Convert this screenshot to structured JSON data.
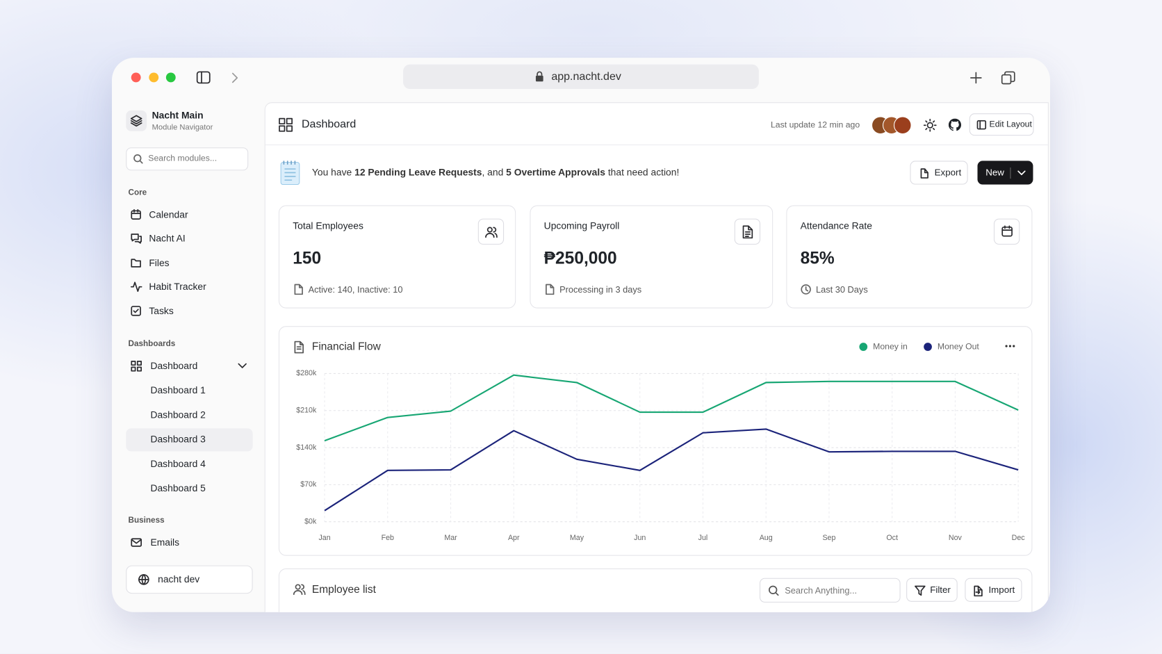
{
  "browser": {
    "url": "app.nacht.dev"
  },
  "sidebar": {
    "workspace": "Nacht Main",
    "workspace_subtitle": "Module Navigator",
    "search_placeholder": "Search modules...",
    "sections": [
      {
        "label": "Core",
        "items": [
          "Calendar",
          "Nacht AI",
          "Files",
          "Habit Tracker",
          "Tasks"
        ]
      },
      {
        "label": "Dashboards",
        "items": [
          "Dashboard"
        ],
        "subitems": [
          "Dashboard 1",
          "Dashboard 2",
          "Dashboard 3",
          "Dashboard 4",
          "Dashboard 5"
        ]
      },
      {
        "label": "Business",
        "items": [
          "Emails"
        ]
      }
    ],
    "footer": "nacht dev"
  },
  "header": {
    "title": "Dashboard",
    "last_update": "Last update 12 min ago",
    "edit_layout": "Edit Layout"
  },
  "notice": {
    "text_before": "You have",
    "highlight_1": "12 Pending Leave Requests",
    "text_middle": ", and",
    "highlight_2": "5 Overtime Approvals",
    "text_after": "that need action!",
    "export": "Export",
    "new": "New"
  },
  "cards": [
    {
      "title": "Total Employees",
      "value": "150",
      "note": "Active: 140, Inactive: 10"
    },
    {
      "title": "Upcoming Payroll",
      "value": "₱250,000",
      "note": "Processing in 3 days"
    },
    {
      "title": "Attendance Rate",
      "value": "85%",
      "note": "Last 30 Days"
    }
  ],
  "chart_data": {
    "type": "line",
    "title": "Financial Flow",
    "categories": [
      "Jan",
      "Feb",
      "Mar",
      "Apr",
      "May",
      "Jun",
      "Jul",
      "Aug",
      "Sep",
      "Oct",
      "Nov",
      "Dec"
    ],
    "series": [
      {
        "name": "Money in",
        "color": "#17a673",
        "values": [
          153000,
          197000,
          209000,
          277000,
          263000,
          207000,
          207000,
          263000,
          265000,
          265000,
          265000,
          211000
        ]
      },
      {
        "name": "Money Out",
        "color": "#1b237a",
        "values": [
          21000,
          97000,
          98000,
          172000,
          118000,
          97000,
          168000,
          175000,
          132000,
          133000,
          133000,
          98000
        ]
      }
    ],
    "ylim": [
      0,
      280000
    ],
    "yticks": [
      {
        "value": 0,
        "label": "$0k"
      },
      {
        "value": 70000,
        "label": "$70k"
      },
      {
        "value": 140000,
        "label": "$140k"
      },
      {
        "value": 210000,
        "label": "$210k"
      },
      {
        "value": 280000,
        "label": "$280k"
      }
    ],
    "grid": true,
    "legend": "top-right"
  },
  "employee_list": {
    "title": "Employee list",
    "search_placeholder": "Search Anything...",
    "filter": "Filter",
    "import": "Import"
  }
}
